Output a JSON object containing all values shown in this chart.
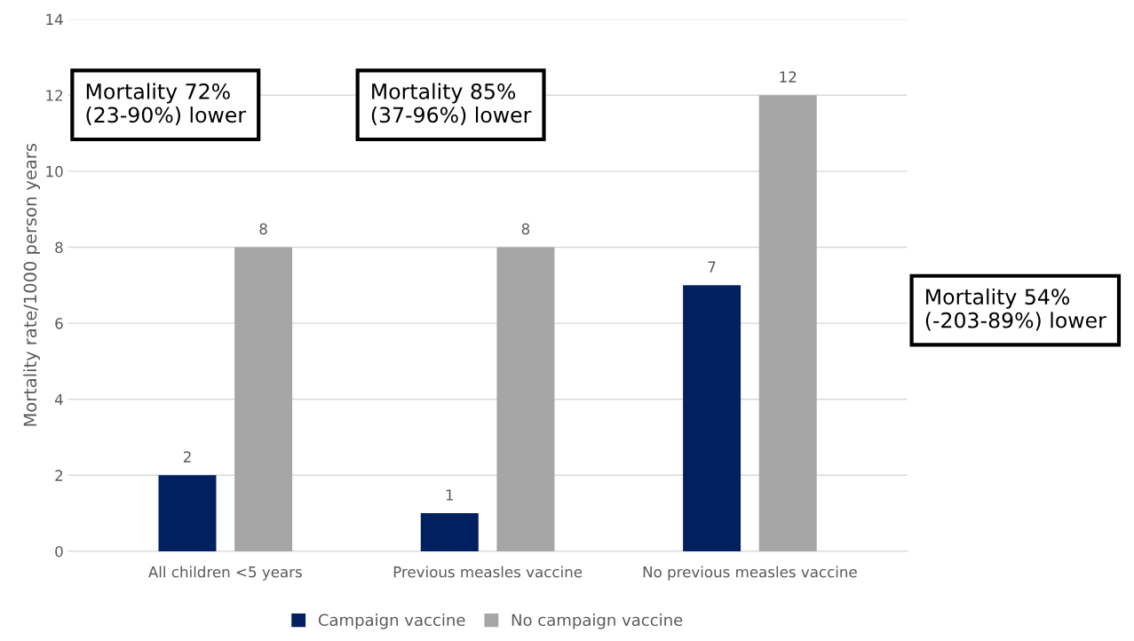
{
  "chart_data": {
    "type": "bar",
    "ylabel": "Mortality rate/1000 person years",
    "categories": [
      "All children <5 years",
      "Previous measles vaccine",
      "No previous measles vaccine"
    ],
    "series": [
      {
        "name": "Campaign vaccine",
        "color": "#002060",
        "values": [
          2,
          1,
          7
        ]
      },
      {
        "name": "No campaign vaccine",
        "color": "#a6a6a6",
        "values": [
          8,
          8,
          12
        ]
      }
    ],
    "ylim": [
      0,
      14
    ],
    "yticks": [
      0,
      2,
      4,
      6,
      8,
      10,
      12,
      14
    ],
    "grid": "y",
    "legend": "bottom",
    "data_labels": true,
    "annotations": [
      "Mortality 72%\n(23-90%) lower",
      "Mortality 85%\n(37-96%) lower",
      "Mortality 54%\n(-203-89%) lower"
    ]
  }
}
